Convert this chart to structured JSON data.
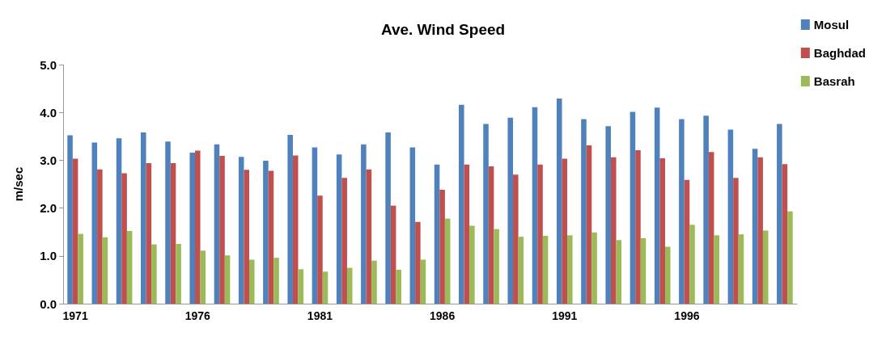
{
  "chart_data": {
    "type": "bar",
    "title": "Ave. Wind Speed",
    "ylabel": "m/sec",
    "categories": [
      "1971",
      null,
      null,
      null,
      null,
      "1976",
      null,
      null,
      null,
      null,
      "1981",
      null,
      null,
      null,
      null,
      "1986",
      null,
      null,
      null,
      null,
      "1991",
      null,
      null,
      null,
      null,
      "1996",
      null,
      null,
      null,
      null
    ],
    "series": [
      {
        "name": "Mosul",
        "color": "#4f81bd",
        "values": [
          3.52,
          3.37,
          3.46,
          3.58,
          3.39,
          3.16,
          3.33,
          3.07,
          2.99,
          3.53,
          3.27,
          3.12,
          3.33,
          3.58,
          3.27,
          2.91,
          4.16,
          3.76,
          3.89,
          4.11,
          4.29,
          3.86,
          3.71,
          4.01,
          4.1,
          3.86,
          3.93,
          3.64,
          3.24,
          3.76
        ]
      },
      {
        "name": "Baghdad",
        "color": "#c0504d",
        "values": [
          3.03,
          2.81,
          2.73,
          2.94,
          2.94,
          3.2,
          3.09,
          2.8,
          2.78,
          3.1,
          2.26,
          2.63,
          2.81,
          2.05,
          1.71,
          2.38,
          2.91,
          2.87,
          2.7,
          2.91,
          3.03,
          3.31,
          3.06,
          3.21,
          3.04,
          2.59,
          3.17,
          2.63,
          3.06,
          2.92
        ]
      },
      {
        "name": "Basrah",
        "color": "#9bbb59",
        "values": [
          1.46,
          1.39,
          1.52,
          1.24,
          1.25,
          1.11,
          1.01,
          0.92,
          0.96,
          0.72,
          0.67,
          0.75,
          0.9,
          0.71,
          0.92,
          1.78,
          1.63,
          1.56,
          1.4,
          1.42,
          1.43,
          1.49,
          1.33,
          1.37,
          1.19,
          1.65,
          1.43,
          1.45,
          1.53,
          1.93
        ]
      }
    ],
    "ylim": [
      0,
      5
    ],
    "yticks": [
      {
        "value": 0,
        "label": "0.0"
      },
      {
        "value": 1,
        "label": "1.0"
      },
      {
        "value": 2,
        "label": "2.0"
      },
      {
        "value": 3,
        "label": "3.0"
      },
      {
        "value": 4,
        "label": "4.0"
      },
      {
        "value": 5,
        "label": "5.0"
      }
    ],
    "grid": false,
    "legend": "top right"
  }
}
